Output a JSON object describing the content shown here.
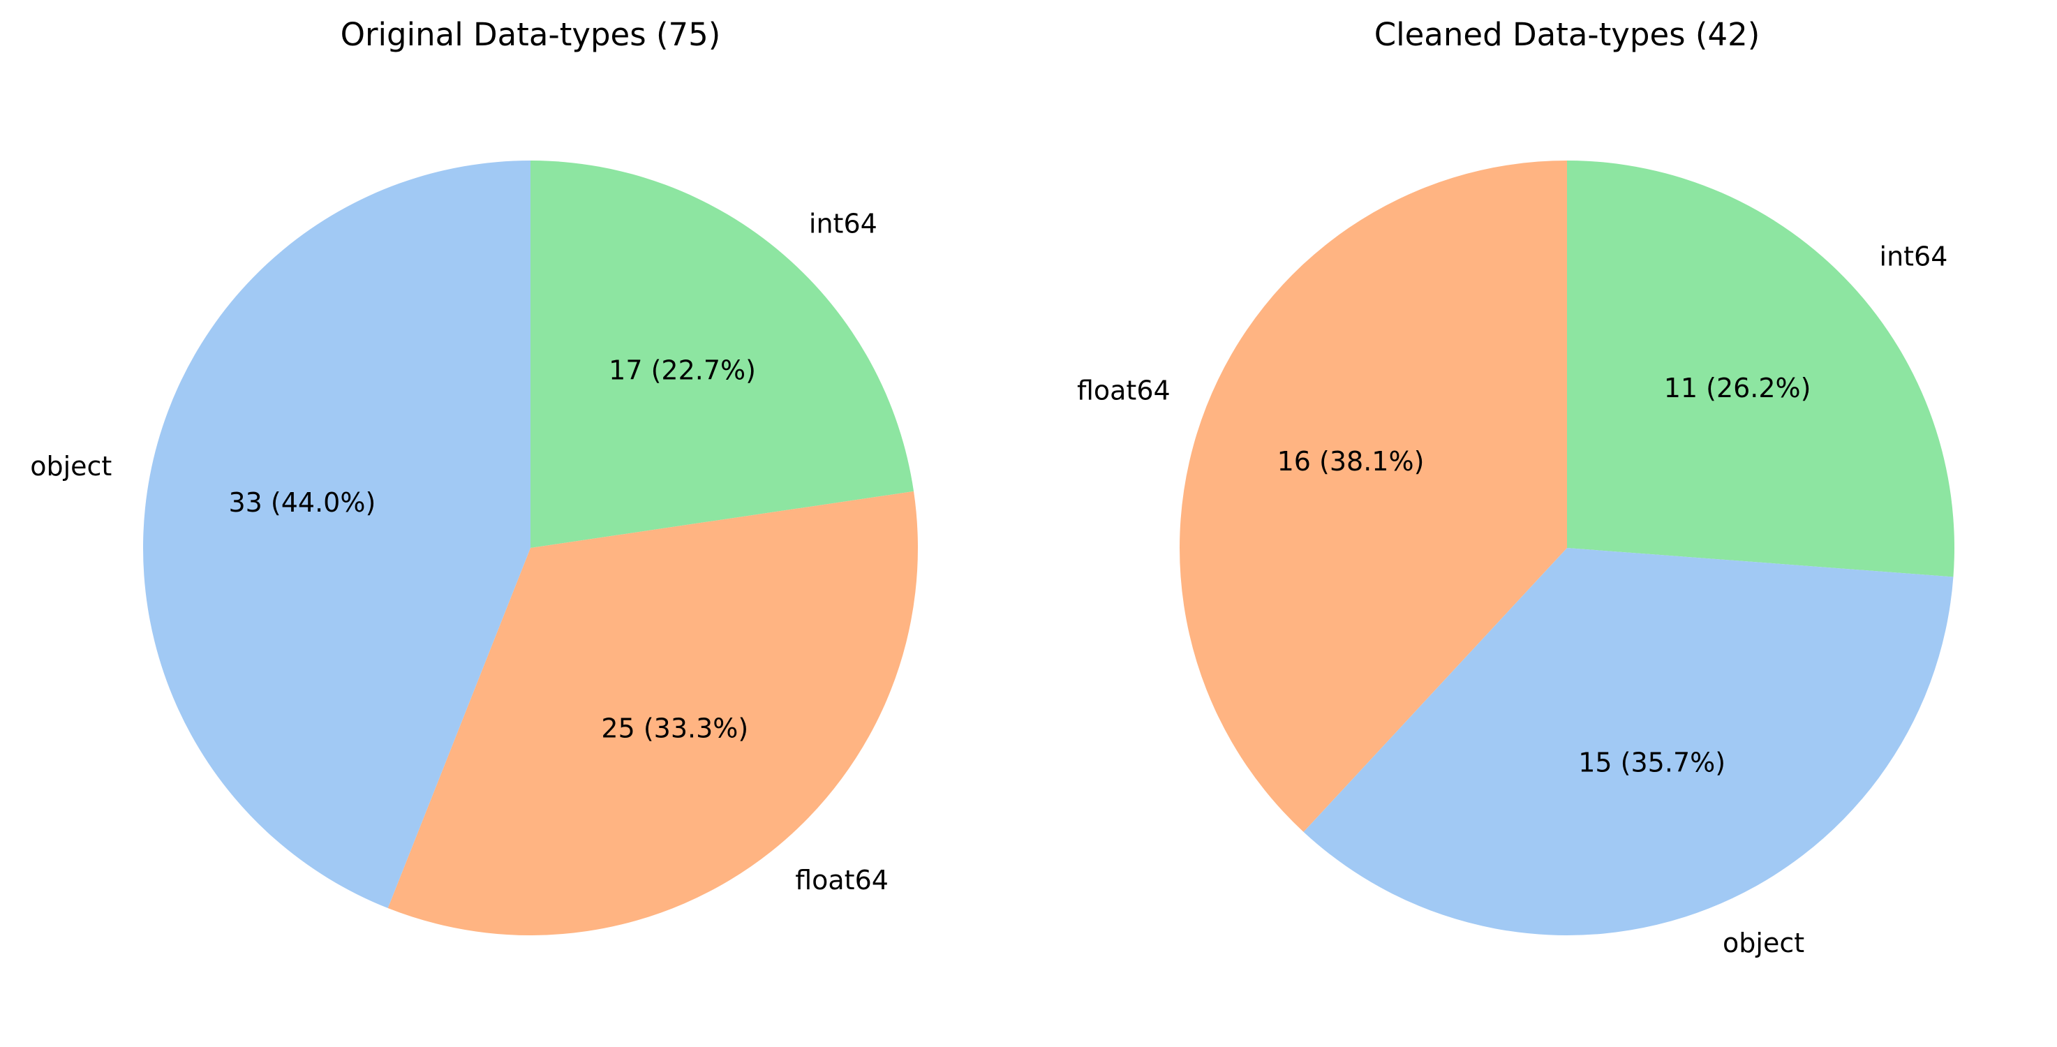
{
  "chart_data": [
    {
      "type": "pie",
      "title": "Original Data-types (75)",
      "total": 75,
      "slices": [
        {
          "label": "int64",
          "value": 17,
          "autopct": "17 (22.7%)",
          "color": "#8de5a1"
        },
        {
          "label": "float64",
          "value": 25,
          "autopct": "25 (33.3%)",
          "color": "#ffb482"
        },
        {
          "label": "object",
          "value": 33,
          "autopct": "33 (44.0%)",
          "color": "#a1c9f4"
        }
      ]
    },
    {
      "type": "pie",
      "title": "Cleaned Data-types (42)",
      "total": 42,
      "slices": [
        {
          "label": "int64",
          "value": 11,
          "autopct": "11 (26.2%)",
          "color": "#8de5a1"
        },
        {
          "label": "object",
          "value": 15,
          "autopct": "15 (35.7%)",
          "color": "#a1c9f4"
        },
        {
          "label": "float64",
          "value": 16,
          "autopct": "16 (38.1%)",
          "color": "#ffb482"
        }
      ]
    }
  ]
}
